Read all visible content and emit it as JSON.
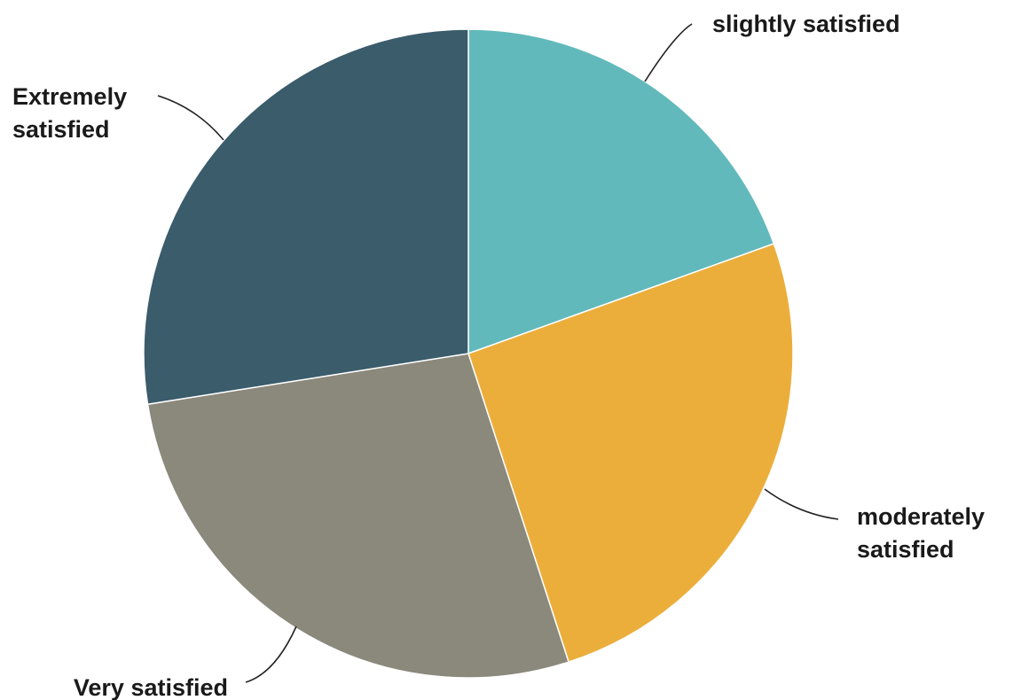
{
  "chart_data": {
    "type": "pie",
    "title": "",
    "start_angle_deg": 0,
    "direction": "clockwise",
    "slices": [
      {
        "label": "slightly satisfied",
        "value": 19.5,
        "color": "#62B9BB"
      },
      {
        "label": "moderately satisfied",
        "value": 25.5,
        "color": "#ECAE3B"
      },
      {
        "label": "Very satisfied",
        "value": 27.5,
        "color": "#8B887C"
      },
      {
        "label": "Extremely satisfied",
        "value": 27.5,
        "color": "#3A5C6B"
      }
    ],
    "legend": "none",
    "label_position": "outside-with-leader-lines"
  }
}
